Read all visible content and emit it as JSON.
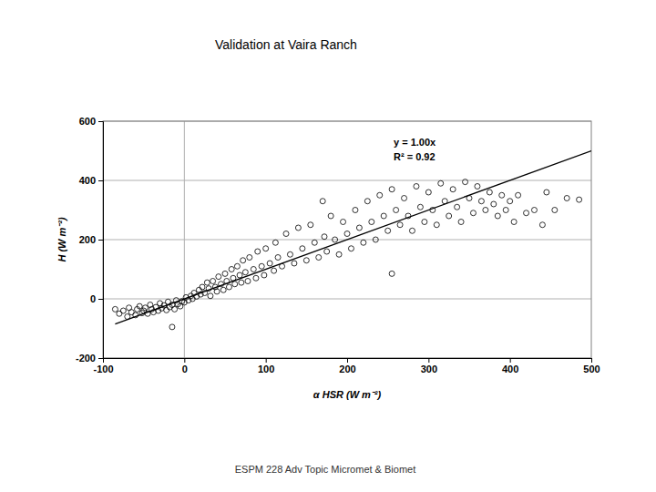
{
  "chart_data": {
    "type": "scatter",
    "title": "Validation at Vaira Ranch",
    "footer": "ESPM 228 Adv Topic Micromet & Biomet",
    "x_label": "α HSR (W m⁻²)",
    "y_label": "H (W m⁻²)",
    "annotations": [
      "y = 1.00x",
      "R² = 0.92"
    ],
    "fit": {
      "slope": 1,
      "x_range": [
        -85,
        500
      ]
    },
    "xlim": [
      -100,
      500
    ],
    "ylim": [
      -200,
      600
    ],
    "xticks": [
      -100,
      0,
      100,
      200,
      300,
      400,
      500
    ],
    "yticks": [
      -200,
      0,
      200,
      400,
      600
    ],
    "grid": true,
    "marker": "circle",
    "color": "#000000",
    "x": [
      -85,
      -80,
      -75,
      -70,
      -68,
      -65,
      -60,
      -58,
      -55,
      -52,
      -50,
      -48,
      -45,
      -42,
      -40,
      -38,
      -35,
      -32,
      -30,
      -28,
      -25,
      -22,
      -20,
      -18,
      -15,
      -12,
      -10,
      -8,
      -5,
      -3,
      0,
      -15,
      2,
      5,
      8,
      10,
      12,
      15,
      18,
      20,
      22,
      25,
      28,
      30,
      32,
      35,
      38,
      40,
      42,
      45,
      48,
      50,
      52,
      55,
      58,
      60,
      62,
      65,
      68,
      70,
      72,
      75,
      78,
      80,
      85,
      88,
      90,
      95,
      98,
      100,
      105,
      110,
      112,
      115,
      120,
      125,
      130,
      135,
      140,
      145,
      150,
      155,
      160,
      165,
      170,
      172,
      175,
      180,
      185,
      190,
      195,
      200,
      205,
      210,
      215,
      220,
      225,
      230,
      235,
      240,
      245,
      250,
      255,
      255,
      260,
      265,
      270,
      275,
      280,
      285,
      290,
      295,
      300,
      305,
      310,
      315,
      320,
      325,
      330,
      335,
      340,
      345,
      350,
      355,
      360,
      365,
      370,
      375,
      380,
      385,
      390,
      395,
      400,
      405,
      410,
      420,
      430,
      440,
      445,
      470,
      485,
      455
    ],
    "values": [
      -35,
      -50,
      -40,
      -60,
      -30,
      -45,
      -55,
      -35,
      -25,
      -48,
      -40,
      -30,
      -50,
      -20,
      -35,
      -45,
      -28,
      -40,
      -15,
      -32,
      -22,
      -38,
      -10,
      -28,
      -20,
      -35,
      -5,
      -18,
      -25,
      -8,
      -12,
      -95,
      5,
      -5,
      10,
      0,
      20,
      8,
      30,
      15,
      40,
      20,
      55,
      35,
      10,
      60,
      40,
      25,
      75,
      50,
      30,
      85,
      60,
      40,
      100,
      70,
      50,
      110,
      80,
      55,
      130,
      90,
      60,
      140,
      100,
      70,
      160,
      110,
      80,
      170,
      120,
      95,
      190,
      140,
      110,
      220,
      150,
      120,
      240,
      170,
      130,
      250,
      190,
      140,
      330,
      210,
      160,
      280,
      200,
      150,
      260,
      220,
      170,
      300,
      240,
      190,
      330,
      260,
      200,
      350,
      280,
      230,
      85,
      370,
      300,
      250,
      340,
      280,
      230,
      380,
      310,
      260,
      360,
      300,
      250,
      390,
      330,
      280,
      370,
      310,
      260,
      395,
      340,
      290,
      380,
      330,
      300,
      360,
      320,
      280,
      350,
      300,
      330,
      260,
      350,
      290,
      300,
      250,
      360,
      340,
      335,
      300
    ]
  }
}
